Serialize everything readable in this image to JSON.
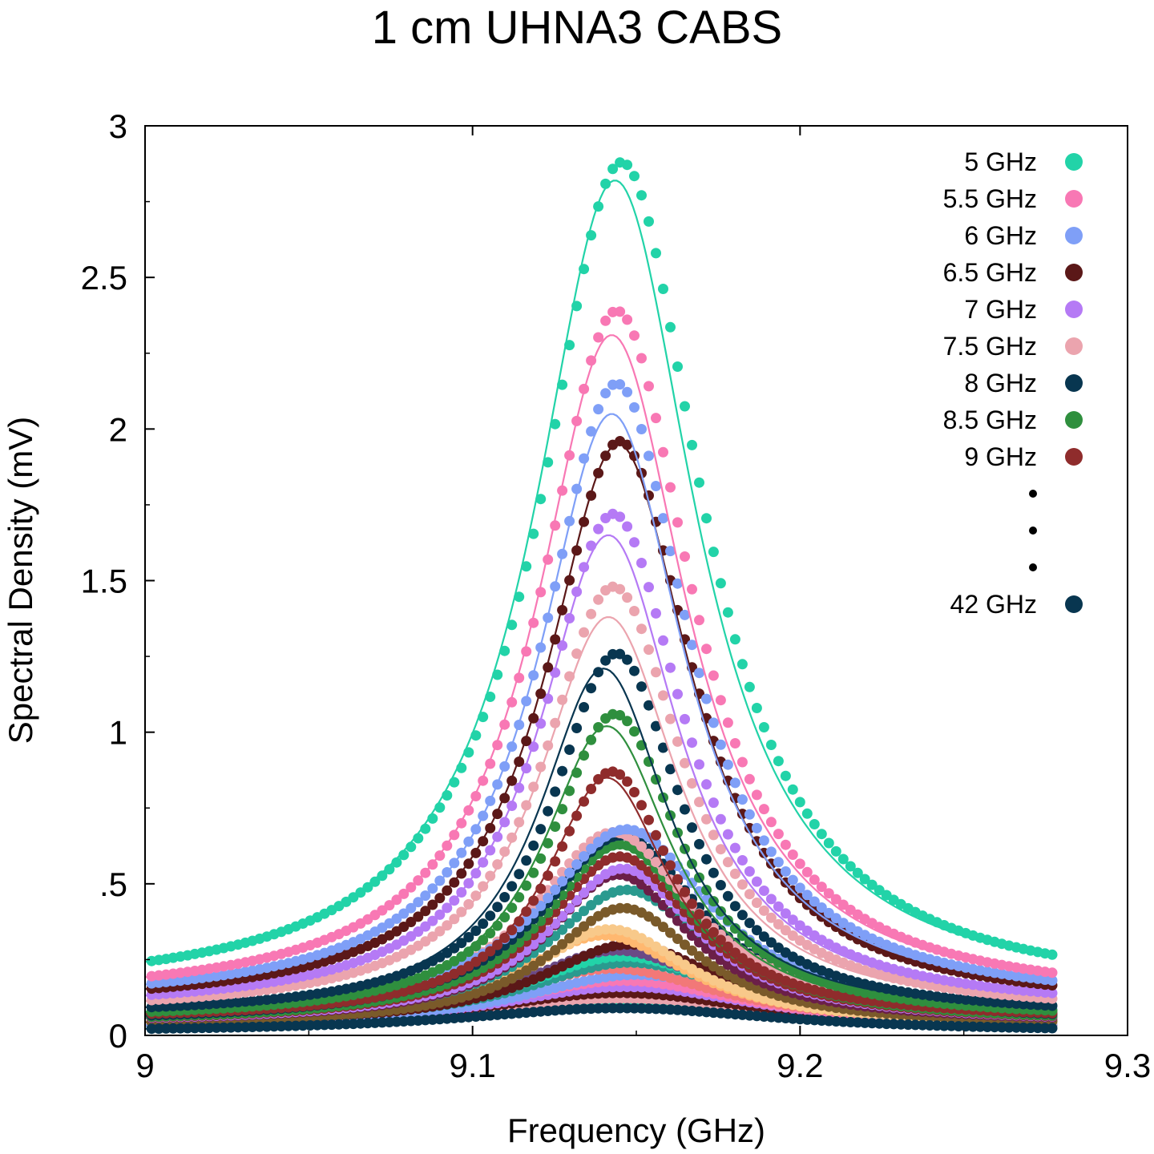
{
  "chart_data": {
    "type": "scatter",
    "title": "1 cm UHNA3 CABS",
    "xlabel": "Frequency (GHz)",
    "ylabel": "Spectral Density (mV)",
    "xlim": [
      9.0,
      9.3
    ],
    "ylim": [
      0,
      3.0
    ],
    "x_ticks": [
      {
        "value": 9.0,
        "label": "9"
      },
      {
        "value": 9.1,
        "label": "9.1"
      },
      {
        "value": 9.2,
        "label": "9.2"
      },
      {
        "value": 9.3,
        "label": "9.3"
      }
    ],
    "x_minor_ticks": [
      9.05,
      9.15,
      9.25
    ],
    "y_ticks": [
      {
        "value": 0,
        "label": "0"
      },
      {
        "value": 0.5,
        "label": ".5"
      },
      {
        "value": 1.0,
        "label": "1"
      },
      {
        "value": 1.5,
        "label": "1.5"
      },
      {
        "value": 2.0,
        "label": "2"
      },
      {
        "value": 2.5,
        "label": "2.5"
      },
      {
        "value": 3.0,
        "label": "3"
      }
    ],
    "y_minor_ticks": [
      0.25,
      0.75,
      1.25,
      1.75,
      2.25,
      2.75
    ],
    "grid": false,
    "legend_position": "top-right",
    "legend_ellipsis": [
      "•",
      "•",
      "•"
    ],
    "x_range_data": [
      9.002,
      9.277
    ],
    "point_step": 0.0022,
    "series": [
      {
        "name": "5 GHz",
        "color": "#22d3a8",
        "peak": 2.88,
        "center": 9.1455,
        "gamma": 0.03,
        "baseline": 0.13,
        "fit_peak": 2.82,
        "fit_center": 9.1435
      },
      {
        "name": "5.5 GHz",
        "color": "#f878b4",
        "peak": 2.39,
        "center": 9.144,
        "gamma": 0.028,
        "baseline": 0.11,
        "fit_peak": 2.31,
        "fit_center": 9.1425
      },
      {
        "name": "6 GHz",
        "color": "#7f9ff7",
        "peak": 2.15,
        "center": 9.144,
        "gamma": 0.027,
        "baseline": 0.1,
        "fit_peak": 2.05,
        "fit_center": 9.1425
      },
      {
        "name": "6.5 GHz",
        "color": "#5b1818",
        "peak": 1.96,
        "center": 9.145,
        "gamma": 0.027,
        "baseline": 0.09,
        "fit_peak": 1.95,
        "fit_center": 9.1445
      },
      {
        "name": "7 GHz",
        "color": "#b57af5",
        "peak": 1.72,
        "center": 9.143,
        "gamma": 0.026,
        "baseline": 0.08,
        "fit_peak": 1.65,
        "fit_center": 9.1415
      },
      {
        "name": "7.5 GHz",
        "color": "#eba4ae",
        "peak": 1.48,
        "center": 9.143,
        "gamma": 0.026,
        "baseline": 0.07,
        "fit_peak": 1.38,
        "fit_center": 9.1415
      },
      {
        "name": "8 GHz",
        "color": "#083650",
        "peak": 1.26,
        "center": 9.144,
        "gamma": 0.024,
        "baseline": 0.06,
        "fit_peak": 1.21,
        "fit_center": 9.14
      },
      {
        "name": "8.5 GHz",
        "color": "#2f8f3e",
        "peak": 1.06,
        "center": 9.1435,
        "gamma": 0.024,
        "baseline": 0.05,
        "fit_peak": 1.02,
        "fit_center": 9.141
      },
      {
        "name": "9 GHz",
        "color": "#8f2c2c",
        "peak": 0.87,
        "center": 9.1425,
        "gamma": 0.023,
        "baseline": 0.05,
        "fit_peak": 0.85,
        "fit_center": 9.141
      },
      {
        "name": "42 GHz",
        "color": "#083650",
        "peak": 0.09,
        "center": 9.145,
        "gamma": 0.06,
        "baseline": 0.01,
        "fit_peak": 0.09,
        "fit_center": 9.145
      }
    ],
    "unlabeled_series": [
      {
        "color": "#7f9ff7",
        "peak": 0.68,
        "center": 9.147,
        "gamma": 0.032,
        "baseline": 0.05
      },
      {
        "color": "#eba4ae",
        "peak": 0.67,
        "center": 9.143,
        "gamma": 0.03,
        "baseline": 0.05
      },
      {
        "color": "#083650",
        "peak": 0.66,
        "center": 9.1455,
        "gamma": 0.03,
        "baseline": 0.04
      },
      {
        "color": "#2f8f3e",
        "peak": 0.63,
        "center": 9.145,
        "gamma": 0.028,
        "baseline": 0.04
      },
      {
        "color": "#8f2c2c",
        "peak": 0.59,
        "center": 9.145,
        "gamma": 0.028,
        "baseline": 0.04
      },
      {
        "color": "#b57af5",
        "peak": 0.55,
        "center": 9.146,
        "gamma": 0.028,
        "baseline": 0.04
      },
      {
        "color": "#6b1f48",
        "peak": 0.53,
        "center": 9.1445,
        "gamma": 0.027,
        "baseline": 0.04
      },
      {
        "color": "#2a9a8f",
        "peak": 0.48,
        "center": 9.147,
        "gamma": 0.03,
        "baseline": 0.04
      },
      {
        "color": "#7a5a2a",
        "peak": 0.42,
        "center": 9.146,
        "gamma": 0.028,
        "baseline": 0.03
      },
      {
        "color": "#f8c98a",
        "peak": 0.35,
        "center": 9.142,
        "gamma": 0.03,
        "baseline": 0.03
      },
      {
        "color": "#ffb870",
        "peak": 0.33,
        "center": 9.14,
        "gamma": 0.032,
        "baseline": 0.03
      },
      {
        "color": "#5b1818",
        "peak": 0.3,
        "center": 9.148,
        "gamma": 0.034,
        "baseline": 0.03
      },
      {
        "color": "#6b4a86",
        "peak": 0.28,
        "center": 9.144,
        "gamma": 0.036,
        "baseline": 0.03
      },
      {
        "color": "#22d3a8",
        "peak": 0.26,
        "center": 9.146,
        "gamma": 0.038,
        "baseline": 0.03
      },
      {
        "color": "#2a9a8f",
        "peak": 0.24,
        "center": 9.148,
        "gamma": 0.04,
        "baseline": 0.03
      },
      {
        "color": "#f27878",
        "peak": 0.22,
        "center": 9.143,
        "gamma": 0.04,
        "baseline": 0.03
      },
      {
        "color": "#7f9ff7",
        "peak": 0.2,
        "center": 9.15,
        "gamma": 0.044,
        "baseline": 0.02
      },
      {
        "color": "#f878b4",
        "peak": 0.18,
        "center": 9.146,
        "gamma": 0.046,
        "baseline": 0.02
      },
      {
        "color": "#b57af5",
        "peak": 0.16,
        "center": 9.147,
        "gamma": 0.05,
        "baseline": 0.02
      },
      {
        "color": "#5b1818",
        "peak": 0.14,
        "center": 9.145,
        "gamma": 0.052,
        "baseline": 0.02
      },
      {
        "color": "#eba4ae",
        "peak": 0.12,
        "center": 9.146,
        "gamma": 0.056,
        "baseline": 0.02
      },
      {
        "color": "#22d3a8",
        "peak": 0.1,
        "center": 9.148,
        "gamma": 0.06,
        "baseline": 0.02
      }
    ]
  }
}
